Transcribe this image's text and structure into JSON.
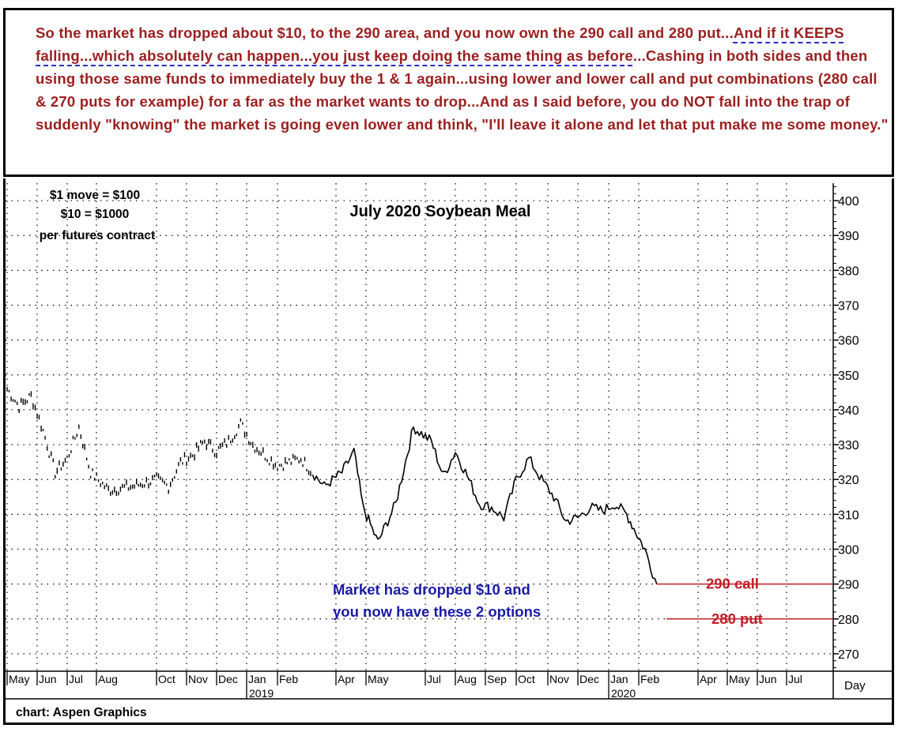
{
  "annotation": {
    "part1": "So the market has dropped about $10, to the 290 area, and you now own the 290 call and 280 put...",
    "part2": "And if it KEEPS falling...which absolutely can happen...you just keep doing the same thing as before",
    "part3": "...Cashing in both sides and then using those same funds to immediately buy the 1 & 1 again...using lower and lower call and put combinations (280 call & 270 puts for example) for a far as the market wants to drop...And as I said before, you do NOT fall into the trap of suddenly \"knowing\" the market is going even lower and think, \"I'll leave it alone and let that put make me some money.\""
  },
  "info": {
    "line1": "$1 move = $100",
    "line2": "$10 = $1000",
    "line3": "per futures contract"
  },
  "footer": {
    "credit": "chart: Aspen Graphics"
  },
  "chart_data": {
    "type": "line",
    "title": "July 2020 Soybean Meal",
    "ylim": [
      265,
      405
    ],
    "y_ticks": [
      400,
      390,
      380,
      370,
      360,
      350,
      340,
      330,
      320,
      310,
      300,
      290,
      280,
      270
    ],
    "x_tick_labels": [
      "May",
      "Jun",
      "Jul",
      "Aug",
      "Oct",
      "Nov",
      "Dec",
      "Jan",
      "Feb",
      "Apr",
      "May",
      "Jul",
      "Aug",
      "Sep",
      "Oct",
      "Nov",
      "Dec",
      "Jan",
      "Feb",
      "Apr",
      "May",
      "Jun",
      "Jul"
    ],
    "year_labels": [
      {
        "label": "2019",
        "after_tick": 7
      },
      {
        "label": "2020",
        "after_tick": 17
      }
    ],
    "x_axis_unit_label": "Day",
    "months_timeline": [
      "May-18",
      "Jun-18",
      "Jul-18",
      "Aug-18",
      "Oct-18",
      "Nov-18",
      "Dec-18",
      "Jan-19",
      "Feb-19",
      "Apr-19",
      "May-19",
      "Jul-19",
      "Aug-19",
      "Sep-19",
      "Oct-19",
      "Nov-19",
      "Dec-19",
      "Jan-20",
      "Feb-20"
    ],
    "series": [
      {
        "name": "July 2020 Soybean Meal price",
        "x_month_index": [
          0.0,
          0.4,
          0.8,
          1.2,
          1.6,
          2.0,
          2.4,
          2.8,
          3.2,
          3.6,
          4.0,
          4.4,
          4.8,
          5.2,
          5.6,
          6.0,
          6.4,
          6.8,
          7.2,
          7.6,
          8.0,
          8.4,
          8.8,
          9.2,
          9.6,
          9.9,
          10.2,
          10.5,
          10.8,
          11.2,
          11.6,
          12.0,
          12.4,
          12.8,
          13.2,
          13.6,
          14.0,
          14.4,
          14.8,
          15.2,
          15.6,
          16.0,
          16.4,
          16.8,
          17.2,
          17.6,
          17.9,
          18.2,
          18.4,
          18.6
        ],
        "values": [
          346,
          341,
          344,
          334,
          322,
          326,
          335,
          322,
          317,
          318,
          320,
          318,
          325,
          327,
          331,
          328,
          331,
          336,
          330,
          327,
          324,
          326,
          318,
          322,
          328,
          312,
          302,
          313,
          335,
          331,
          321,
          328,
          321,
          313,
          312,
          309,
          320,
          326,
          320,
          315,
          308,
          309,
          312,
          311,
          313,
          310,
          305,
          300,
          295,
          290
        ]
      }
    ],
    "option_lines": [
      {
        "label": "290 call",
        "price": 290
      },
      {
        "label": "280 put",
        "price": 280
      }
    ],
    "callout": {
      "line1": "Market has dropped $10 and",
      "line2": "you now have these 2 options"
    },
    "colors": {
      "price": "#000000",
      "option": "#c0202a",
      "callout": "#1a1aa8",
      "grid": "#000000"
    }
  }
}
